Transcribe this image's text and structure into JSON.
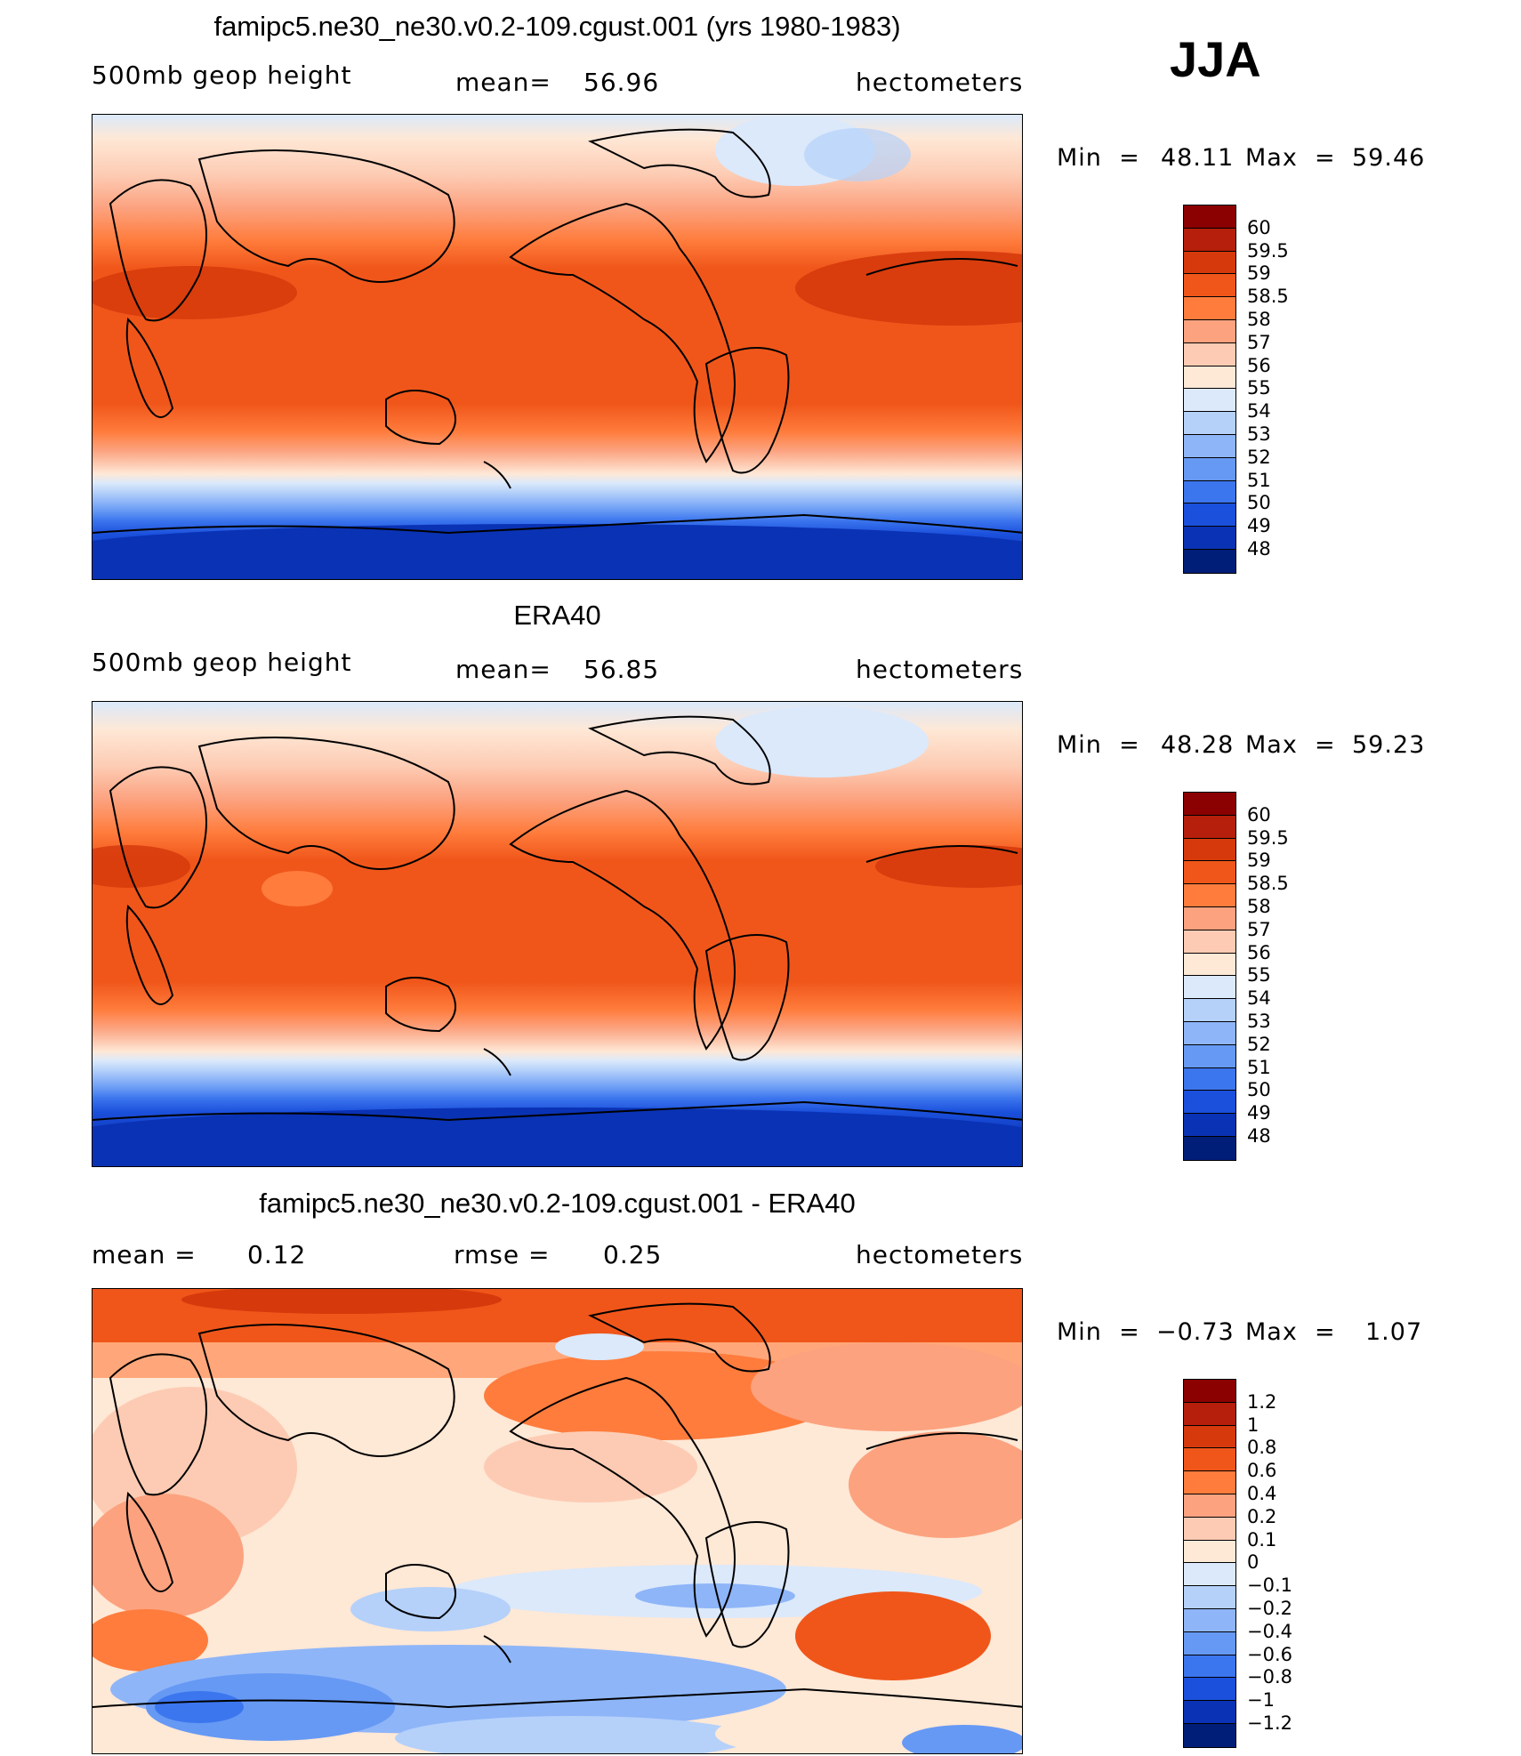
{
  "season": "JJA",
  "panels": [
    {
      "title": "famipc5.ne30_ne30.v0.2-109.cgust.001 (yrs 1980-1983)",
      "left": "500mb  geop  height",
      "center_label": "mean=",
      "center_value": "56.96",
      "right": "hectometers",
      "min_label": "Min  =",
      "min_value": "48.11",
      "max_label": "Max  =",
      "max_value": "59.46"
    },
    {
      "title": "ERA40",
      "left": "500mb  geop  height",
      "center_label": "mean=",
      "center_value": "56.85",
      "right": "hectometers",
      "min_label": "Min  =",
      "min_value": "48.28",
      "max_label": "Max  =",
      "max_value": "59.23"
    },
    {
      "title": "famipc5.ne30_ne30.v0.2-109.cgust.001 - ERA40",
      "left_label": "mean  =",
      "left_value": "0.12",
      "center_label": "rmse  =",
      "center_value": "0.25",
      "right": "hectometers",
      "min_label": "Min  =",
      "min_value": "−0.73",
      "max_label": "Max  =",
      "max_value": "1.07"
    }
  ],
  "legend_abs": {
    "labels": [
      "60",
      "59.5",
      "59",
      "58.5",
      "58",
      "57",
      "56",
      "55",
      "54",
      "53",
      "52",
      "51",
      "50",
      "49",
      "48"
    ],
    "colors": [
      "#8b0000",
      "#b51f0b",
      "#d63a0c",
      "#f0561a",
      "#ff7c3c",
      "#fca27f",
      "#fdcbb3",
      "#fee8d6",
      "#dbe9fb",
      "#b5d1fa",
      "#8eb5f8",
      "#6699f4",
      "#3c76ee",
      "#1b50dc",
      "#0a32b4",
      "#001e78"
    ]
  },
  "legend_diff": {
    "labels": [
      "1.2",
      "1",
      "0.8",
      "0.6",
      "0.4",
      "0.2",
      "0.1",
      "0",
      "−0.1",
      "−0.2",
      "−0.4",
      "−0.6",
      "−0.8",
      "−1",
      "−1.2"
    ],
    "colors": [
      "#8b0000",
      "#b51f0b",
      "#d63a0c",
      "#f0561a",
      "#ff7c3c",
      "#fca27f",
      "#fdcbb3",
      "#fee8d6",
      "#dbe9fb",
      "#b5d1fa",
      "#8eb5f8",
      "#6699f4",
      "#3c76ee",
      "#1b50dc",
      "#0a32b4",
      "#001e78"
    ]
  },
  "colors": {
    "ocean_tropics": "#f0561a",
    "subtropical_max": "#d63a0c",
    "antarctic": "#0a32b4",
    "coastline": "#000000"
  }
}
